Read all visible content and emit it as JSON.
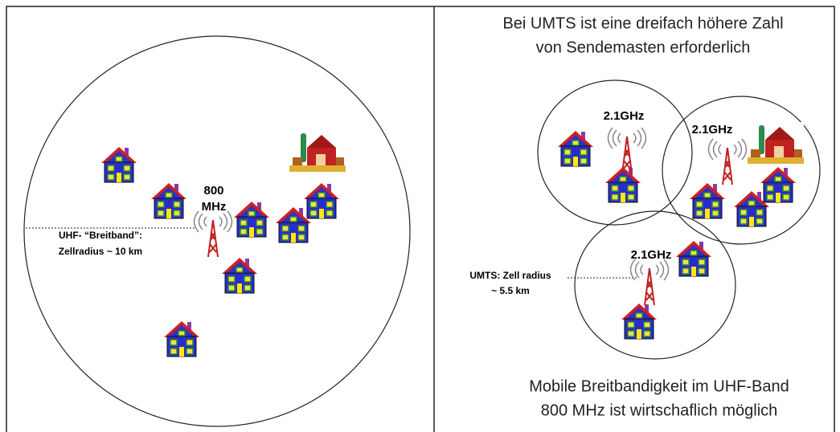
{
  "left": {
    "frequency": [
      "800",
      "MHz"
    ],
    "radius_label": [
      "UHF- “Breitband”:",
      "Zellradius ~ 10 km"
    ]
  },
  "right": {
    "title": [
      "Bei UMTS ist eine dreifach höhere Zahl",
      "von Sendemasten erforderlich"
    ],
    "cells": [
      "2.1GHz",
      "2.1GHz",
      "2.1GHz"
    ],
    "radius_label": [
      "UMTS: Zell radius",
      "~ 5.5 km"
    ],
    "footer": [
      "Mobile Breitbandigkeit im UHF-Band",
      "800 MHz ist wirtschaflich möglich"
    ]
  }
}
